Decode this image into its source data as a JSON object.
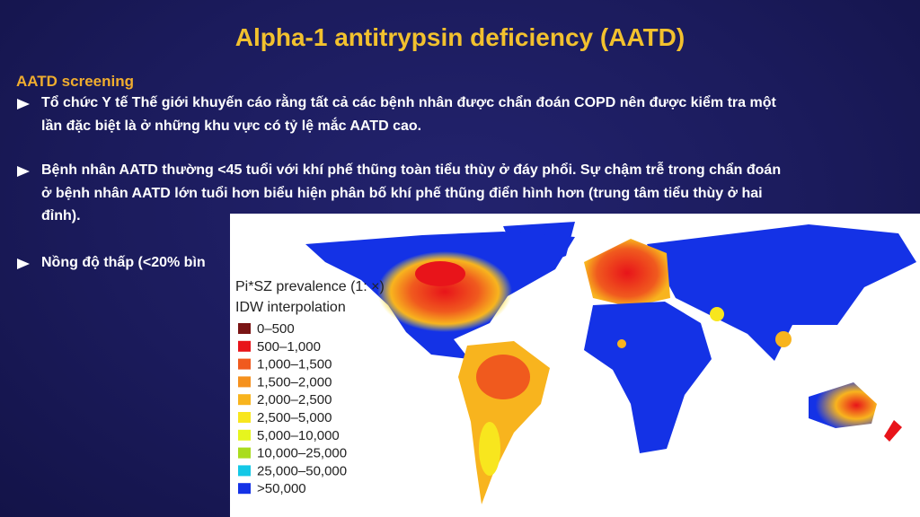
{
  "title": "Alpha-1 antitrypsin deficiency (AATD)",
  "heading": "AATD screening",
  "bullets": [
    [
      "Tổ chức Y tế Thế giới khuyến cáo rằng tất cả các bệnh nhân được chẩn đoán COPD nên được kiểm tra một",
      "lần đặc biệt là ở những khu vực có tỷ lệ mắc AATD cao."
    ],
    [
      "Bệnh nhân AATD thường <45 tuổi với khí phế thũng toàn tiểu thùy ở đáy phổi. Sự chậm trễ trong chẩn đoán",
      "ở bệnh nhân AATD lớn tuổi hơn biểu hiện phân bố khí phế thũng điển hình hơn (trung tâm tiểu thùy ở hai",
      "đỉnh)."
    ],
    [
      "Nồng độ thấp (<20% bìn"
    ]
  ],
  "map": {
    "legend_title": "Pi*SZ prevalence (1: ×)",
    "legend_subtitle": "IDW interpolation",
    "legend": [
      {
        "label": "0–500",
        "color": "#7a1414"
      },
      {
        "label": "500–1,000",
        "color": "#e8141a"
      },
      {
        "label": "1,000–1,500",
        "color": "#f05a1e"
      },
      {
        "label": "1,500–2,000",
        "color": "#f5911e"
      },
      {
        "label": "2,000–2,500",
        "color": "#f8b41e"
      },
      {
        "label": "2,500–5,000",
        "color": "#f8e61e"
      },
      {
        "label": "5,000–10,000",
        "color": "#e6f51e"
      },
      {
        "label": "10,000–25,000",
        "color": "#aadc1e"
      },
      {
        "label": "25,000–50,000",
        "color": "#14c8e6"
      },
      {
        "label": ">50,000",
        "color": "#1432e6"
      }
    ]
  }
}
